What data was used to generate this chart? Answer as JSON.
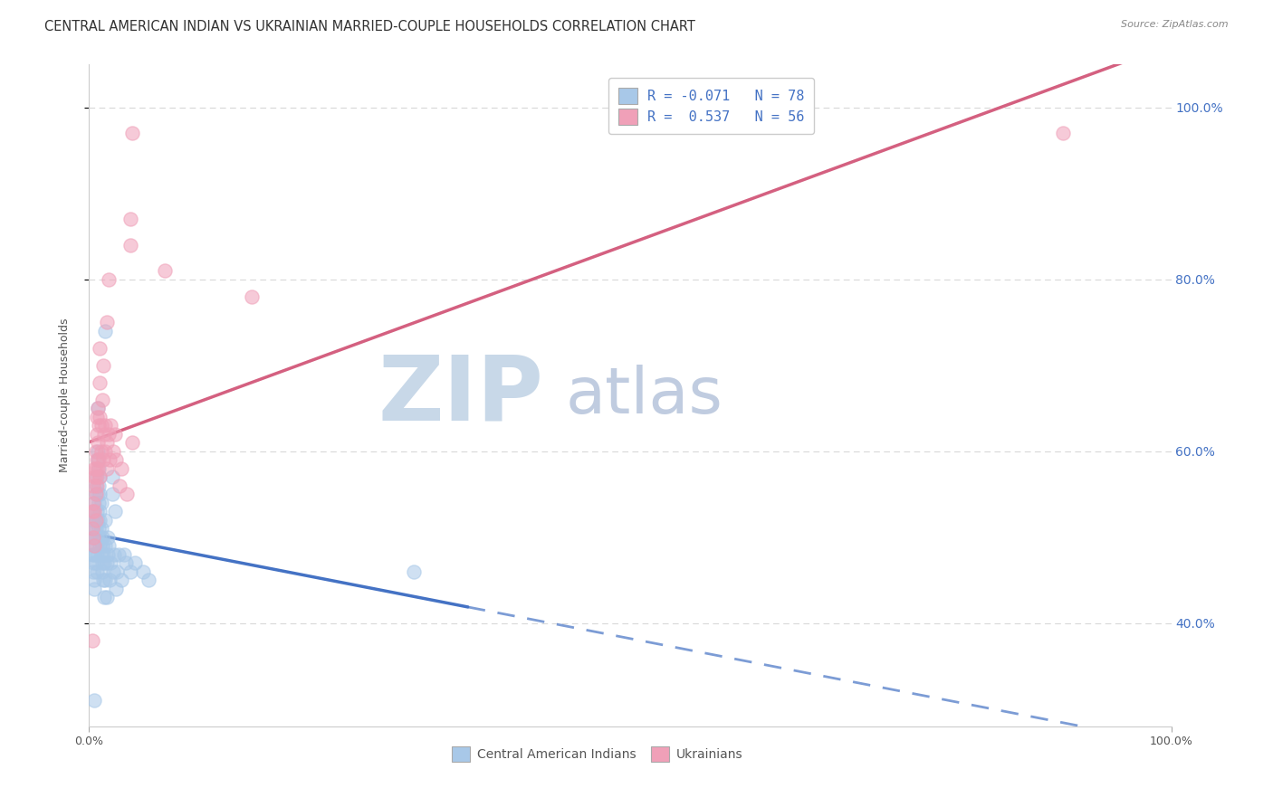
{
  "title": "CENTRAL AMERICAN INDIAN VS UKRAINIAN MARRIED-COUPLE HOUSEHOLDS CORRELATION CHART",
  "source": "Source: ZipAtlas.com",
  "ylabel": "Married-couple Households",
  "xmin": 0.0,
  "xmax": 1.0,
  "ymin": 0.28,
  "ymax": 1.05,
  "xtick_positions": [
    0.0,
    1.0
  ],
  "xtick_labels": [
    "0.0%",
    "100.0%"
  ],
  "ytick_positions": [
    0.4,
    0.6,
    0.8,
    1.0
  ],
  "ytick_labels": [
    "40.0%",
    "60.0%",
    "80.0%",
    "100.0%"
  ],
  "legend_r_label_blue": "R = -0.071   N = 78",
  "legend_r_label_pink": "R =  0.537   N = 56",
  "watermark_zip": "ZIP",
  "watermark_atlas": "atlas",
  "blue_color": "#a8c8e8",
  "pink_color": "#f0a0b8",
  "blue_line_color": "#4472c4",
  "pink_line_color": "#d46080",
  "blue_scatter": [
    [
      0.003,
      0.48
    ],
    [
      0.003,
      0.5
    ],
    [
      0.003,
      0.52
    ],
    [
      0.004,
      0.47
    ],
    [
      0.004,
      0.53
    ],
    [
      0.004,
      0.49
    ],
    [
      0.004,
      0.46
    ],
    [
      0.005,
      0.51
    ],
    [
      0.005,
      0.54
    ],
    [
      0.005,
      0.48
    ],
    [
      0.005,
      0.45
    ],
    [
      0.005,
      0.44
    ],
    [
      0.005,
      0.5
    ],
    [
      0.006,
      0.55
    ],
    [
      0.006,
      0.52
    ],
    [
      0.006,
      0.56
    ],
    [
      0.006,
      0.49
    ],
    [
      0.006,
      0.47
    ],
    [
      0.006,
      0.51
    ],
    [
      0.007,
      0.57
    ],
    [
      0.007,
      0.53
    ],
    [
      0.007,
      0.5
    ],
    [
      0.007,
      0.46
    ],
    [
      0.007,
      0.48
    ],
    [
      0.008,
      0.6
    ],
    [
      0.008,
      0.55
    ],
    [
      0.008,
      0.52
    ],
    [
      0.008,
      0.65
    ],
    [
      0.008,
      0.59
    ],
    [
      0.009,
      0.54
    ],
    [
      0.009,
      0.58
    ],
    [
      0.009,
      0.56
    ],
    [
      0.009,
      0.51
    ],
    [
      0.01,
      0.53
    ],
    [
      0.01,
      0.57
    ],
    [
      0.01,
      0.49
    ],
    [
      0.01,
      0.55
    ],
    [
      0.01,
      0.52
    ],
    [
      0.01,
      0.5
    ],
    [
      0.011,
      0.48
    ],
    [
      0.011,
      0.54
    ],
    [
      0.011,
      0.51
    ],
    [
      0.012,
      0.49
    ],
    [
      0.012,
      0.47
    ],
    [
      0.012,
      0.46
    ],
    [
      0.012,
      0.5
    ],
    [
      0.013,
      0.48
    ],
    [
      0.013,
      0.45
    ],
    [
      0.014,
      0.47
    ],
    [
      0.014,
      0.43
    ],
    [
      0.015,
      0.49
    ],
    [
      0.015,
      0.52
    ],
    [
      0.015,
      0.45
    ],
    [
      0.015,
      0.74
    ],
    [
      0.016,
      0.47
    ],
    [
      0.016,
      0.43
    ],
    [
      0.017,
      0.5
    ],
    [
      0.017,
      0.48
    ],
    [
      0.018,
      0.49
    ],
    [
      0.019,
      0.45
    ],
    [
      0.02,
      0.47
    ],
    [
      0.021,
      0.55
    ],
    [
      0.021,
      0.57
    ],
    [
      0.022,
      0.46
    ],
    [
      0.023,
      0.48
    ],
    [
      0.024,
      0.53
    ],
    [
      0.025,
      0.44
    ],
    [
      0.026,
      0.46
    ],
    [
      0.027,
      0.48
    ],
    [
      0.03,
      0.45
    ],
    [
      0.032,
      0.48
    ],
    [
      0.034,
      0.47
    ],
    [
      0.038,
      0.46
    ],
    [
      0.042,
      0.47
    ],
    [
      0.05,
      0.46
    ],
    [
      0.055,
      0.45
    ],
    [
      0.3,
      0.46
    ],
    [
      0.005,
      0.31
    ]
  ],
  "pink_scatter": [
    [
      0.003,
      0.51
    ],
    [
      0.003,
      0.53
    ],
    [
      0.004,
      0.54
    ],
    [
      0.004,
      0.56
    ],
    [
      0.004,
      0.5
    ],
    [
      0.005,
      0.57
    ],
    [
      0.005,
      0.58
    ],
    [
      0.005,
      0.53
    ],
    [
      0.005,
      0.49
    ],
    [
      0.006,
      0.6
    ],
    [
      0.006,
      0.55
    ],
    [
      0.006,
      0.57
    ],
    [
      0.006,
      0.52
    ],
    [
      0.006,
      0.58
    ],
    [
      0.007,
      0.62
    ],
    [
      0.007,
      0.59
    ],
    [
      0.007,
      0.64
    ],
    [
      0.007,
      0.56
    ],
    [
      0.008,
      0.61
    ],
    [
      0.008,
      0.58
    ],
    [
      0.008,
      0.65
    ],
    [
      0.009,
      0.59
    ],
    [
      0.009,
      0.63
    ],
    [
      0.01,
      0.72
    ],
    [
      0.01,
      0.68
    ],
    [
      0.01,
      0.64
    ],
    [
      0.01,
      0.57
    ],
    [
      0.011,
      0.6
    ],
    [
      0.011,
      0.63
    ],
    [
      0.012,
      0.66
    ],
    [
      0.013,
      0.59
    ],
    [
      0.013,
      0.7
    ],
    [
      0.014,
      0.62
    ],
    [
      0.015,
      0.6
    ],
    [
      0.015,
      0.63
    ],
    [
      0.016,
      0.58
    ],
    [
      0.016,
      0.61
    ],
    [
      0.016,
      0.75
    ],
    [
      0.018,
      0.8
    ],
    [
      0.018,
      0.62
    ],
    [
      0.019,
      0.59
    ],
    [
      0.02,
      0.63
    ],
    [
      0.022,
      0.6
    ],
    [
      0.024,
      0.62
    ],
    [
      0.025,
      0.59
    ],
    [
      0.028,
      0.56
    ],
    [
      0.03,
      0.58
    ],
    [
      0.035,
      0.55
    ],
    [
      0.04,
      0.61
    ],
    [
      0.04,
      0.97
    ],
    [
      0.038,
      0.87
    ],
    [
      0.038,
      0.84
    ],
    [
      0.07,
      0.81
    ],
    [
      0.9,
      0.97
    ],
    [
      0.15,
      0.78
    ],
    [
      0.003,
      0.38
    ]
  ],
  "background_color": "#ffffff",
  "grid_color": "#d8d8d8",
  "title_fontsize": 10.5,
  "axis_label_fontsize": 9,
  "tick_fontsize": 9,
  "watermark_color_zip": "#c8d8e8",
  "watermark_color_atlas": "#c0cce0",
  "watermark_fontsize": 72
}
